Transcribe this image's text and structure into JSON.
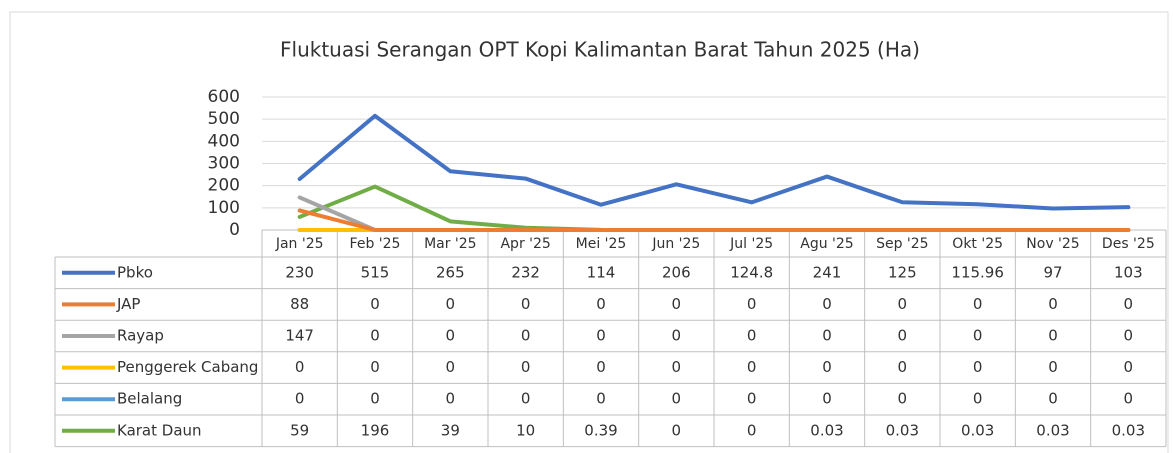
{
  "chart_data": {
    "type": "line",
    "title": "Fluktuasi Serangan OPT Kopi Kalimantan Barat Tahun 2025 (Ha)",
    "categories": [
      "Jan '25",
      "Feb '25",
      "Mar '25",
      "Apr '25",
      "Mei '25",
      "Jun '25",
      "Jul '25",
      "Agu '25",
      "Sep '25",
      "Okt '25",
      "Nov '25",
      "Des '25"
    ],
    "series": [
      {
        "name": "Pbko",
        "color": "#4472c4",
        "values": [
          230,
          515,
          265,
          232,
          114,
          206,
          124.8,
          241,
          125,
          115.96,
          97,
          103
        ]
      },
      {
        "name": "JAP",
        "color": "#ed7d31",
        "values": [
          88,
          0,
          0,
          0,
          0,
          0,
          0,
          0,
          0,
          0,
          0,
          0
        ]
      },
      {
        "name": "Rayap",
        "color": "#a5a5a5",
        "values": [
          147,
          0,
          0,
          0,
          0,
          0,
          0,
          0,
          0,
          0,
          0,
          0
        ]
      },
      {
        "name": "Penggerek Cabang",
        "color": "#ffc000",
        "values": [
          0,
          0,
          0,
          0,
          0,
          0,
          0,
          0,
          0,
          0,
          0,
          0
        ]
      },
      {
        "name": "Belalang",
        "color": "#5b9bd5",
        "values": [
          0,
          0,
          0,
          0,
          0,
          0,
          0,
          0,
          0,
          0,
          0,
          0
        ]
      },
      {
        "name": "Karat Daun",
        "color": "#70ad47",
        "values": [
          59,
          196,
          39,
          10,
          0.39,
          0,
          0,
          0.03,
          0.03,
          0.03,
          0.03,
          0.03
        ]
      }
    ],
    "ylim": [
      0,
      600
    ],
    "yticks": [
      0,
      100,
      200,
      300,
      400,
      500,
      600
    ],
    "grid": true
  }
}
